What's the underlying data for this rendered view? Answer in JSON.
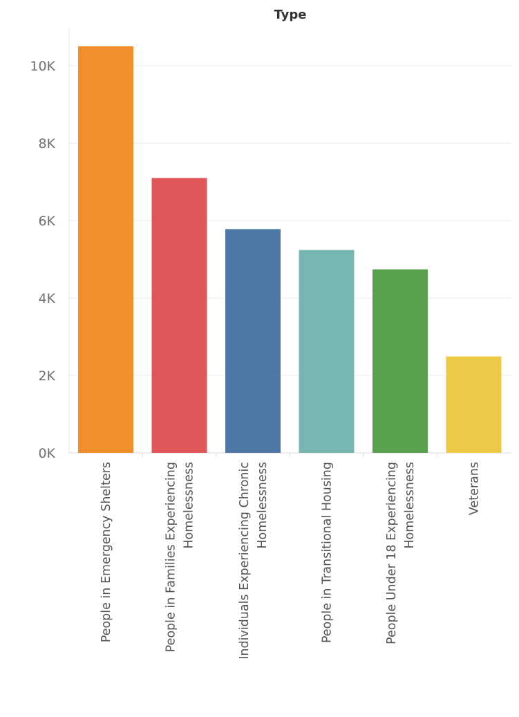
{
  "chart_data": {
    "type": "bar",
    "title": "Type",
    "xlabel": "",
    "ylabel": "",
    "ylim": [
      0,
      11000
    ],
    "yticks": [
      0,
      2000,
      4000,
      6000,
      8000,
      10000
    ],
    "ytick_labels": [
      "0K",
      "2K",
      "4K",
      "6K",
      "8K",
      "10K"
    ],
    "grid": true,
    "legend": "none",
    "categories": [
      [
        "People in Emergency Shelters"
      ],
      [
        "People in Families Experiencing",
        "Homelessness"
      ],
      [
        "Individuals Experiencing Chronic",
        "Homelessness"
      ],
      [
        "People in Transitional Housing"
      ],
      [
        "People Under 18 Experiencing",
        "Homelessness"
      ],
      [
        "Veterans"
      ]
    ],
    "values": [
      10500,
      7100,
      5780,
      5240,
      4740,
      2490
    ],
    "colors": [
      "#f28e2b",
      "#e15759",
      "#4e79a7",
      "#76b7b2",
      "#59a14f",
      "#edc948"
    ]
  }
}
